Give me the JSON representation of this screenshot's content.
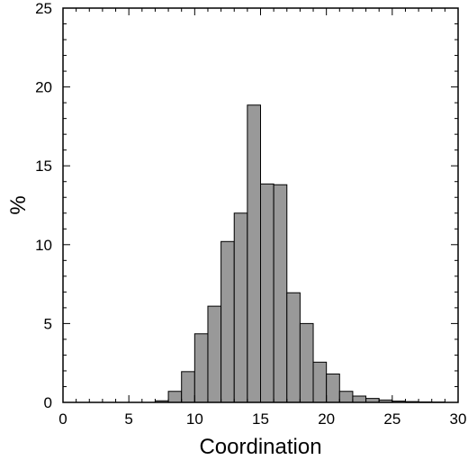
{
  "chart_data": {
    "type": "bar",
    "title": "",
    "xlabel": "Coordination",
    "ylabel": "%",
    "xlim": [
      0,
      30
    ],
    "ylim": [
      0,
      25
    ],
    "x_ticks": [
      0,
      5,
      10,
      15,
      20,
      25,
      30
    ],
    "y_ticks": [
      0,
      5,
      10,
      15,
      20,
      25
    ],
    "bin_width": 1,
    "bins": [
      {
        "x": 7,
        "value": 0.1
      },
      {
        "x": 8,
        "value": 0.7
      },
      {
        "x": 9,
        "value": 1.95
      },
      {
        "x": 10,
        "value": 4.35
      },
      {
        "x": 11,
        "value": 6.1
      },
      {
        "x": 12,
        "value": 10.2
      },
      {
        "x": 13,
        "value": 12.0
      },
      {
        "x": 14,
        "value": 18.85
      },
      {
        "x": 15,
        "value": 13.85
      },
      {
        "x": 16,
        "value": 13.8
      },
      {
        "x": 17,
        "value": 6.95
      },
      {
        "x": 18,
        "value": 5.0
      },
      {
        "x": 19,
        "value": 2.55
      },
      {
        "x": 20,
        "value": 1.8
      },
      {
        "x": 21,
        "value": 0.7
      },
      {
        "x": 22,
        "value": 0.4
      },
      {
        "x": 23,
        "value": 0.25
      },
      {
        "x": 24,
        "value": 0.15
      },
      {
        "x": 25,
        "value": 0.08
      },
      {
        "x": 26,
        "value": 0.05
      },
      {
        "x": 27,
        "value": 0.03
      },
      {
        "x": 28,
        "value": 0.02
      }
    ],
    "bar_color": "#999999",
    "grid": false,
    "legend": "none"
  }
}
